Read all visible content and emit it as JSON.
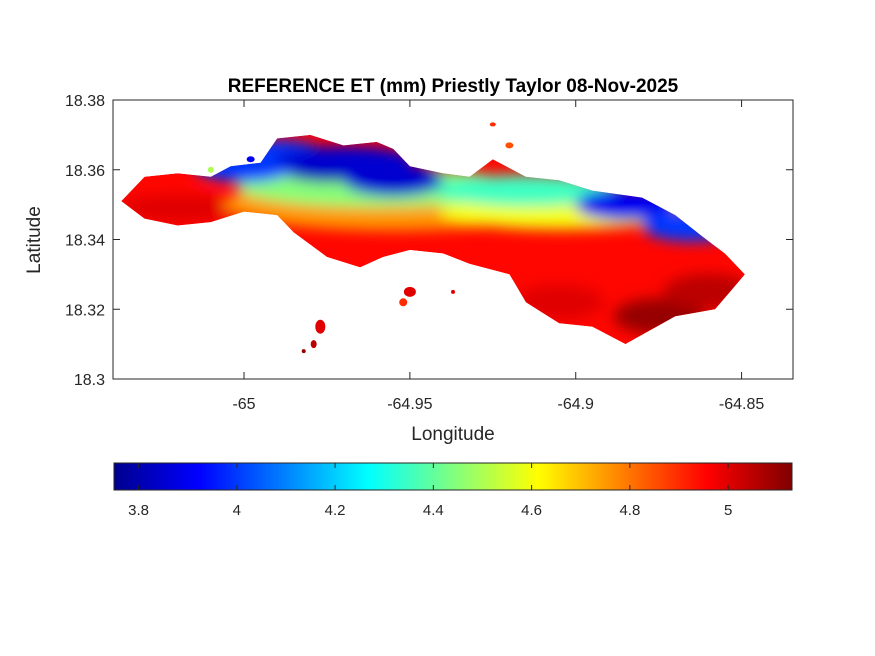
{
  "chart_data": {
    "type": "heatmap",
    "title": "REFERENCE ET (mm) Priestly Taylor 08-Nov-2025",
    "xlabel": "Longitude",
    "ylabel": "Latitude",
    "xlim": [
      -65.0395,
      -64.8345
    ],
    "ylim": [
      18.3,
      18.38
    ],
    "xticks": [
      -65,
      -64.95,
      -64.9,
      -64.85
    ],
    "xtick_labels": [
      "-65",
      "-64.95",
      "-64.9",
      "-64.85"
    ],
    "yticks": [
      18.3,
      18.32,
      18.34,
      18.36,
      18.38
    ],
    "ytick_labels": [
      "18.3",
      "18.32",
      "18.34",
      "18.36",
      "18.38"
    ],
    "colormap": "jet",
    "clim": [
      3.75,
      5.13
    ],
    "colorbar": {
      "location": "bottom",
      "ticks": [
        3.8,
        4,
        4.2,
        4.4,
        4.6,
        4.8,
        5
      ],
      "tick_labels": [
        "3.8",
        "4",
        "4.2",
        "4.4",
        "4.6",
        "4.8",
        "5"
      ]
    },
    "grid": false,
    "field": {
      "description_of_values": "reference ET in mm, low (~3.8) along north-central ridges, high (~5.1) along south-east coast",
      "main_island_north_edge": [
        [
          -65.037,
          18.351
        ],
        [
          -65.03,
          18.358
        ],
        [
          -65.02,
          18.359
        ],
        [
          -65.01,
          18.358
        ],
        [
          -65.004,
          18.361
        ],
        [
          -64.995,
          18.362
        ],
        [
          -64.99,
          18.369
        ],
        [
          -64.98,
          18.37
        ],
        [
          -64.97,
          18.367
        ],
        [
          -64.96,
          18.368
        ],
        [
          -64.955,
          18.366
        ],
        [
          -64.95,
          18.361
        ],
        [
          -64.94,
          18.359
        ],
        [
          -64.932,
          18.358
        ],
        [
          -64.925,
          18.363
        ],
        [
          -64.915,
          18.358
        ],
        [
          -64.905,
          18.357
        ],
        [
          -64.895,
          18.354
        ],
        [
          -64.88,
          18.352
        ],
        [
          -64.87,
          18.347
        ],
        [
          -64.862,
          18.341
        ],
        [
          -64.855,
          18.336
        ],
        [
          -64.849,
          18.33
        ]
      ],
      "main_island_south_edge": [
        [
          -65.037,
          18.351
        ],
        [
          -65.03,
          18.346
        ],
        [
          -65.02,
          18.344
        ],
        [
          -65.01,
          18.345
        ],
        [
          -65.0,
          18.348
        ],
        [
          -64.99,
          18.347
        ],
        [
          -64.985,
          18.342
        ],
        [
          -64.975,
          18.335
        ],
        [
          -64.965,
          18.332
        ],
        [
          -64.958,
          18.335
        ],
        [
          -64.95,
          18.337
        ],
        [
          -64.94,
          18.336
        ],
        [
          -64.932,
          18.333
        ],
        [
          -64.92,
          18.33
        ],
        [
          -64.915,
          18.322
        ],
        [
          -64.905,
          18.316
        ],
        [
          -64.895,
          18.315
        ],
        [
          -64.885,
          18.31
        ],
        [
          -64.87,
          18.318
        ],
        [
          -64.858,
          18.32
        ],
        [
          -64.849,
          18.33
        ]
      ],
      "low_zones": [
        {
          "lon": -64.975,
          "lat": 18.361,
          "value": 3.8
        },
        {
          "lon": -64.955,
          "lat": 18.357,
          "value": 3.85
        },
        {
          "lon": -64.99,
          "lat": 18.364,
          "value": 4.0
        },
        {
          "lon": -64.885,
          "lat": 18.35,
          "value": 3.9
        },
        {
          "lon": -64.865,
          "lat": 18.344,
          "value": 4.0
        },
        {
          "lon": -65.0,
          "lat": 18.361,
          "value": 4.0
        }
      ]
    }
  }
}
